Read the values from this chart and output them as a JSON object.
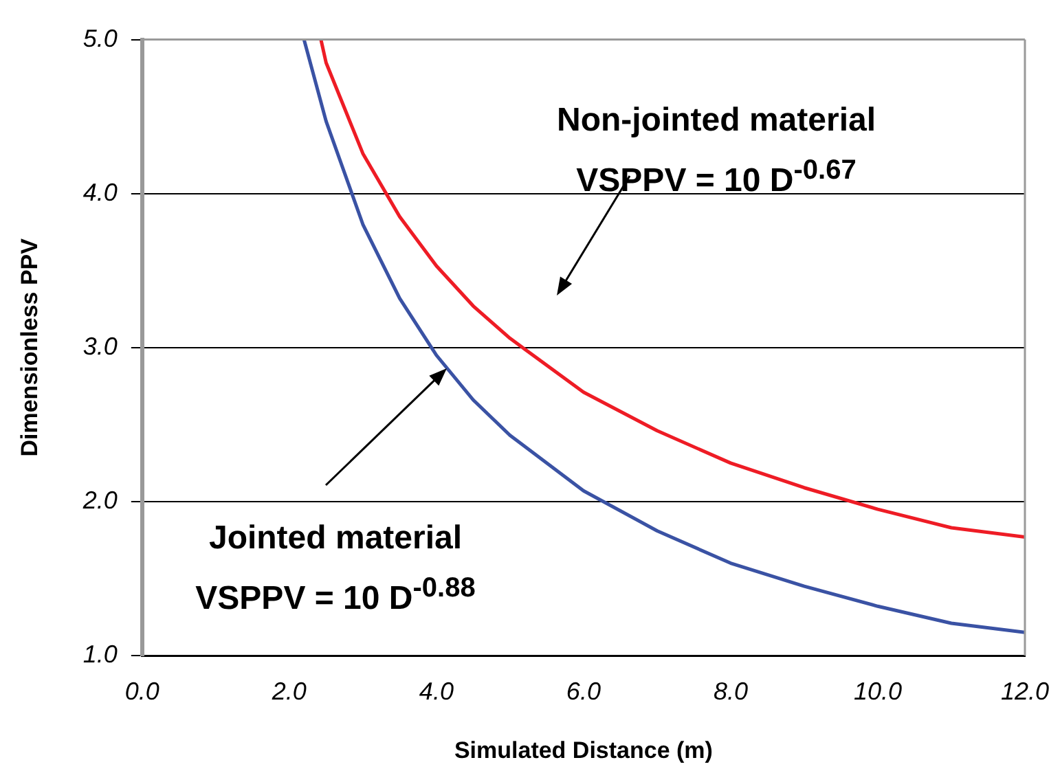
{
  "chart_data": {
    "type": "line",
    "xlabel": "Simulated Distance (m)",
    "ylabel": "Dimensionless PPV",
    "xlim": [
      0,
      12
    ],
    "xticks": [
      {
        "value": 0,
        "label": "0.0"
      },
      {
        "value": 2,
        "label": "2.0"
      },
      {
        "value": 4,
        "label": "4.0"
      },
      {
        "value": 6,
        "label": "6.0"
      },
      {
        "value": 8,
        "label": "8.0"
      },
      {
        "value": 10,
        "label": "10.0"
      },
      {
        "value": 12,
        "label": "12.0"
      }
    ],
    "ylim": [
      1,
      5
    ],
    "yticks": [
      {
        "value": 1,
        "label": "1.0"
      },
      {
        "value": 2,
        "label": "2.0"
      },
      {
        "value": 3,
        "label": "3.0"
      },
      {
        "value": 4,
        "label": "4.0"
      },
      {
        "value": 5,
        "label": "5.0"
      }
    ],
    "grid": "y",
    "legend": false,
    "marker": "none",
    "line_style": "solid",
    "series": [
      {
        "color": "#ee1c25",
        "x": [
          2.43,
          2.5,
          3,
          3.5,
          4,
          4.5,
          5,
          6,
          7,
          8,
          9,
          10,
          11,
          12
        ],
        "values": [
          5.0,
          4.85,
          4.26,
          3.85,
          3.53,
          3.27,
          3.06,
          2.71,
          2.46,
          2.25,
          2.09,
          1.95,
          1.83,
          1.77
        ]
      },
      {
        "color": "#3a52a4",
        "x": [
          2.2,
          2.5,
          3,
          3.5,
          4,
          4.5,
          5,
          6,
          7,
          8,
          9,
          10,
          11,
          12
        ],
        "values": [
          5.0,
          4.47,
          3.8,
          3.32,
          2.95,
          2.66,
          2.43,
          2.07,
          1.81,
          1.6,
          1.45,
          1.32,
          1.21,
          1.15
        ]
      }
    ],
    "annotations": [
      "Non-jointed material\nVSPPV = 10 D$^{-0.67}$",
      "Jointed material\nVSPPV = 10 D$^{-0.88}$"
    ]
  }
}
